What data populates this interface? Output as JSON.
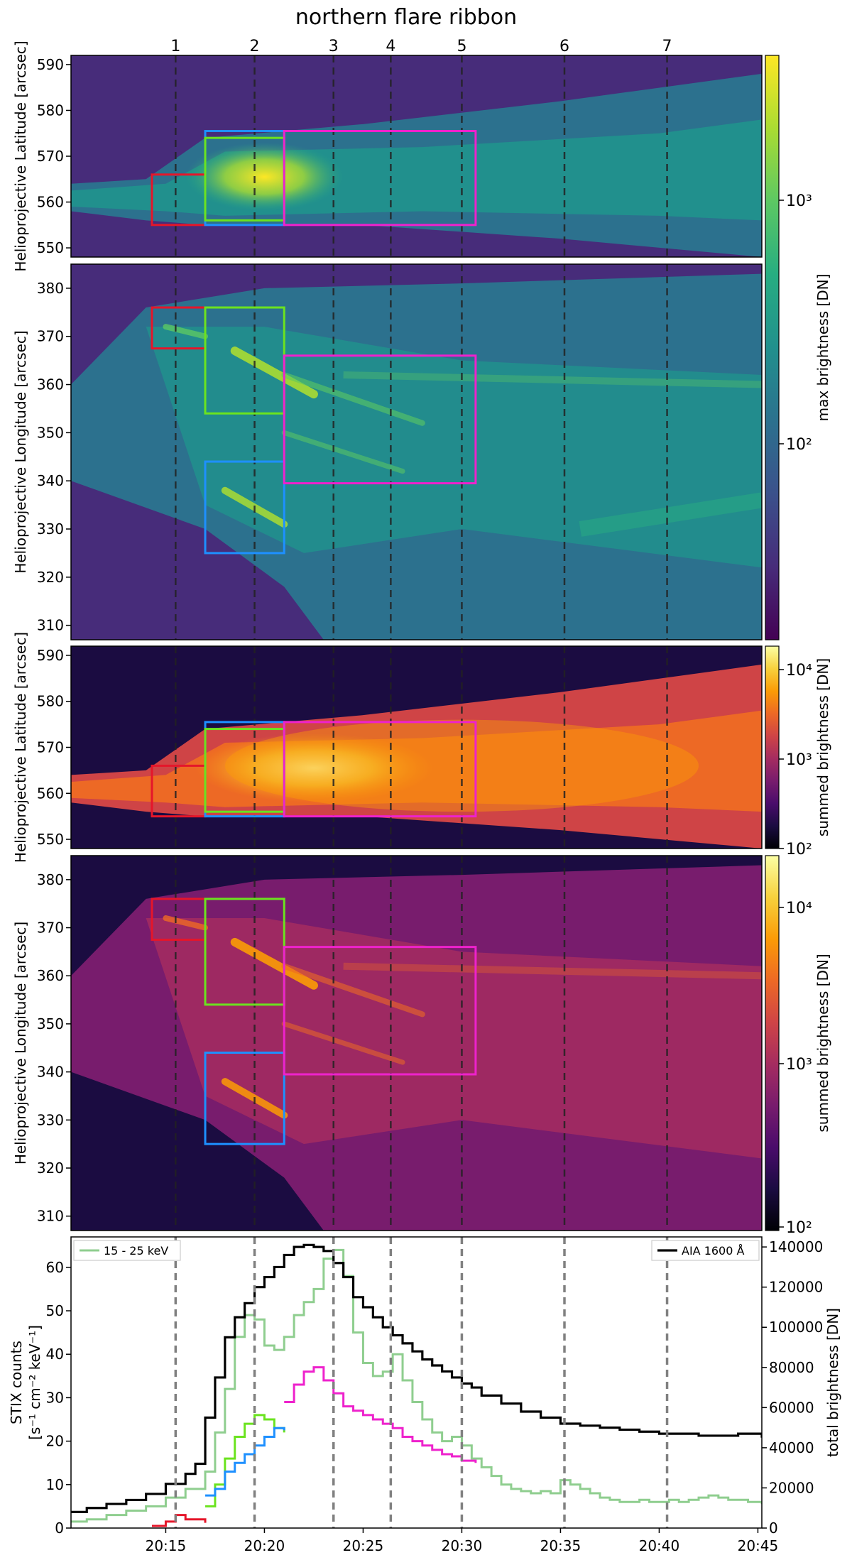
{
  "figure": {
    "title": "northern flare ribbon",
    "markers": [
      {
        "label": "1",
        "time": 15.5
      },
      {
        "label": "2",
        "time": 19.5
      },
      {
        "label": "3",
        "time": 23.5
      },
      {
        "label": "4",
        "time": 26.4
      },
      {
        "label": "5",
        "time": 30.0
      },
      {
        "label": "6",
        "time": 35.2
      },
      {
        "label": "7",
        "time": 40.4
      }
    ],
    "time_axis": {
      "start": 10.2,
      "end": 45.2,
      "ticks": [
        "20:15",
        "20:20",
        "20:25",
        "20:30",
        "20:35",
        "20:40",
        "20:45"
      ],
      "tick_minutes": [
        15,
        20,
        25,
        30,
        35,
        40,
        45
      ]
    },
    "box_colors": {
      "red": "#e5162a",
      "blue": "#1e90ff",
      "green": "#6be31f",
      "magenta": "#ee22cc"
    }
  },
  "chart_data": [
    {
      "type": "heatmap",
      "panel": "max-brightness-latitude",
      "ylabel": "Helioprojective Latitude [arcsec]",
      "ylim": [
        548,
        592
      ],
      "yticks": [
        550,
        560,
        570,
        580,
        590
      ],
      "colormap": "viridis",
      "colorbar_label": "max brightness [DN]",
      "colorbar_ticks": [
        "10²",
        "10³"
      ],
      "boxes": [
        {
          "color": "red",
          "t": [
            14.3,
            17.0
          ],
          "y": [
            555,
            566
          ]
        },
        {
          "color": "blue",
          "t": [
            17.0,
            21.0
          ],
          "y": [
            555,
            575.5
          ]
        },
        {
          "color": "green",
          "t": [
            17.0,
            21.0
          ],
          "y": [
            556,
            574
          ]
        },
        {
          "color": "magenta",
          "t": [
            21.0,
            30.7
          ],
          "y": [
            555,
            575.5
          ]
        }
      ]
    },
    {
      "type": "heatmap",
      "panel": "max-brightness-longitude",
      "ylabel": "Helioprojective Longitude [arcsec]",
      "ylim": [
        307,
        385
      ],
      "yticks": [
        310,
        320,
        330,
        340,
        350,
        360,
        370,
        380
      ],
      "colormap": "viridis",
      "boxes": [
        {
          "color": "red",
          "t": [
            14.3,
            17.0
          ],
          "y": [
            367.5,
            376
          ]
        },
        {
          "color": "green",
          "t": [
            17.0,
            21.0
          ],
          "y": [
            354,
            376
          ]
        },
        {
          "color": "blue",
          "t": [
            17.0,
            21.0
          ],
          "y": [
            325,
            344
          ]
        },
        {
          "color": "magenta",
          "t": [
            21.0,
            30.7
          ],
          "y": [
            339.5,
            366
          ]
        }
      ]
    },
    {
      "type": "heatmap",
      "panel": "summed-brightness-latitude",
      "ylabel": "Helioprojective Latitude [arcsec]",
      "ylim": [
        548,
        592
      ],
      "yticks": [
        550,
        560,
        570,
        580,
        590
      ],
      "colormap": "inferno",
      "colorbar_label": "summed brightness [DN]",
      "colorbar_ticks": [
        "10²",
        "10³",
        "10⁴"
      ],
      "boxes": [
        {
          "color": "red",
          "t": [
            14.3,
            17.0
          ],
          "y": [
            555,
            566
          ]
        },
        {
          "color": "blue",
          "t": [
            17.0,
            21.0
          ],
          "y": [
            555,
            575.5
          ]
        },
        {
          "color": "green",
          "t": [
            17.0,
            21.0
          ],
          "y": [
            556,
            574
          ]
        },
        {
          "color": "magenta",
          "t": [
            21.0,
            30.7
          ],
          "y": [
            555,
            575.5
          ]
        }
      ]
    },
    {
      "type": "heatmap",
      "panel": "summed-brightness-longitude",
      "ylabel": "Helioprojective Longitude [arcsec]",
      "ylim": [
        307,
        385
      ],
      "yticks": [
        310,
        320,
        330,
        340,
        350,
        360,
        370,
        380
      ],
      "colormap": "inferno",
      "colorbar_label": "summed brightness [DN]",
      "colorbar_ticks": [
        "10²",
        "10³",
        "10⁴"
      ],
      "boxes": [
        {
          "color": "red",
          "t": [
            14.3,
            17.0
          ],
          "y": [
            367.5,
            376
          ]
        },
        {
          "color": "green",
          "t": [
            17.0,
            21.0
          ],
          "y": [
            354,
            376
          ]
        },
        {
          "color": "blue",
          "t": [
            17.0,
            21.0
          ],
          "y": [
            325,
            344
          ]
        },
        {
          "color": "magenta",
          "t": [
            21.0,
            30.7
          ],
          "y": [
            339.5,
            366
          ]
        }
      ]
    },
    {
      "type": "line",
      "panel": "light-curves",
      "ylabel_left": "STIX counts\n[s⁻¹ cm⁻² keV⁻¹]",
      "ylabel_right": "total brightness [DN]",
      "ylim_left": [
        0,
        67
      ],
      "yticks_left": [
        0,
        10,
        20,
        30,
        40,
        50,
        60
      ],
      "ylim_right": [
        0,
        145000
      ],
      "yticks_right": [
        0,
        20000,
        40000,
        60000,
        80000,
        100000,
        120000,
        140000
      ],
      "legend_left": "15 - 25 keV",
      "legend_right": "AIA 1600 Å",
      "series": [
        {
          "name": "15 - 25 keV",
          "axis": "left",
          "color": "#8fce8f",
          "step": true,
          "x": [
            10.2,
            11,
            12,
            13,
            14,
            15,
            16,
            17,
            17.5,
            18,
            18.5,
            19,
            19.5,
            20,
            20.5,
            21,
            21.5,
            22,
            22.5,
            23,
            23.5,
            24,
            24.5,
            25,
            25.5,
            26,
            26.5,
            27,
            27.5,
            28,
            28.5,
            29,
            29.5,
            30,
            30.5,
            31,
            31.5,
            32,
            32.5,
            33,
            33.5,
            34,
            34.5,
            35,
            35.5,
            36,
            36.5,
            37,
            37.5,
            38,
            38.5,
            39,
            39.5,
            40,
            40.5,
            41,
            41.5,
            42,
            42.5,
            43,
            43.5,
            44,
            44.5,
            45.2
          ],
          "y": [
            1.5,
            2,
            3,
            4,
            5,
            7,
            9,
            13,
            22,
            32,
            44,
            49,
            48,
            42,
            41,
            44,
            49,
            52,
            55,
            62,
            64,
            58,
            45,
            38,
            35,
            36,
            40,
            34,
            29,
            25,
            22,
            20,
            21,
            19,
            16,
            14,
            12,
            10,
            9,
            8.5,
            8,
            8.5,
            8,
            11,
            10,
            9,
            8,
            7,
            6.5,
            6,
            6,
            6.5,
            6,
            6,
            6.5,
            6,
            6.5,
            7,
            7.5,
            7,
            6.5,
            6.5,
            6,
            5.5
          ]
        },
        {
          "name": "AIA 1600 Å",
          "axis": "right",
          "color": "#000000",
          "step": true,
          "x": [
            10.2,
            11,
            12,
            13,
            14,
            15,
            16,
            16.5,
            17,
            17.5,
            18,
            18.5,
            19,
            19.5,
            20,
            20.5,
            21,
            21.5,
            22,
            22.5,
            23,
            23.5,
            24,
            24.5,
            25,
            25.5,
            26,
            26.5,
            27,
            27.5,
            28,
            28.5,
            29,
            29.5,
            30,
            30.5,
            31,
            32,
            33,
            34,
            35,
            36,
            37,
            38,
            39,
            40,
            41,
            42,
            43,
            44,
            45.2
          ],
          "y": [
            8000,
            10000,
            12000,
            14000,
            17000,
            22000,
            27000,
            32000,
            55000,
            75000,
            95000,
            105000,
            112000,
            120000,
            125000,
            130000,
            136000,
            140000,
            141000,
            140000,
            138000,
            132000,
            125000,
            115000,
            110000,
            105000,
            100000,
            96000,
            92000,
            88000,
            84000,
            81000,
            78000,
            75000,
            72000,
            70000,
            66000,
            62000,
            58000,
            55000,
            52000,
            51000,
            50000,
            49000,
            48000,
            47000,
            47000,
            46000,
            46000,
            47000,
            45000
          ]
        },
        {
          "name": "red",
          "axis": "left",
          "color": "#e5162a",
          "step": true,
          "x": [
            14.3,
            15,
            15.5,
            16,
            17
          ],
          "y": [
            0.5,
            1.5,
            3,
            2,
            1.2
          ]
        },
        {
          "name": "green",
          "axis": "left",
          "color": "#6be31f",
          "step": true,
          "x": [
            17,
            17.5,
            18,
            18.5,
            19,
            19.5,
            20,
            20.5,
            21
          ],
          "y": [
            5,
            10,
            16,
            21,
            24,
            26,
            25,
            23,
            22
          ]
        },
        {
          "name": "blue",
          "axis": "left",
          "color": "#1e90ff",
          "step": true,
          "x": [
            17,
            17.5,
            18,
            18.5,
            19,
            19.5,
            20,
            20.5,
            21
          ],
          "y": [
            7.5,
            9,
            13,
            15,
            17,
            19,
            21,
            23,
            22.5
          ]
        },
        {
          "name": "magenta",
          "axis": "left",
          "color": "#ee22cc",
          "step": true,
          "x": [
            21,
            21.5,
            22,
            22.5,
            23,
            23.5,
            24,
            24.5,
            25,
            25.5,
            26,
            26.5,
            27,
            27.5,
            28,
            28.5,
            29,
            29.5,
            30,
            30.7
          ],
          "y": [
            29,
            33,
            36,
            37,
            34,
            31,
            28,
            27,
            26,
            25,
            24,
            23,
            21,
            20,
            19,
            18,
            17,
            16.5,
            15.5,
            15
          ]
        }
      ]
    }
  ]
}
